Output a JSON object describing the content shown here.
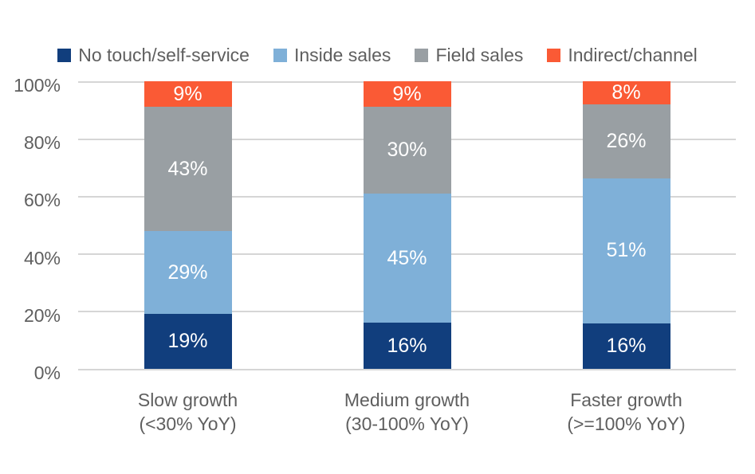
{
  "chart_data": {
    "type": "bar",
    "variant": "stacked-100-percent",
    "title": "",
    "xlabel": "",
    "ylabel": "",
    "categories": [
      {
        "line1": "Slow growth",
        "line2": "(<30% YoY)"
      },
      {
        "line1": "Medium growth",
        "line2": "(30-100% YoY)"
      },
      {
        "line1": "Faster growth",
        "line2": "(>=100% YoY)"
      }
    ],
    "series": [
      {
        "name": "No touch/self-service",
        "color": "#113e7d",
        "values": [
          19,
          16,
          16
        ],
        "labels": [
          "19%",
          "16%",
          "16%"
        ]
      },
      {
        "name": "Inside sales",
        "color": "#7fb0d8",
        "values": [
          29,
          45,
          51
        ],
        "labels": [
          "29%",
          "45%",
          "51%"
        ]
      },
      {
        "name": "Field sales",
        "color": "#999fa3",
        "values": [
          43,
          30,
          26
        ],
        "labels": [
          "43%",
          "30%",
          "26%"
        ]
      },
      {
        "name": "Indirect/channel",
        "color": "#fa5a35",
        "values": [
          9,
          9,
          8
        ],
        "labels": [
          "9%",
          "9%",
          "8%"
        ]
      }
    ],
    "y_ticks": [
      "0%",
      "20%",
      "40%",
      "60%",
      "80%",
      "100%"
    ],
    "ylim": [
      0,
      100
    ],
    "grid": true,
    "legend_position": "top",
    "colors": {
      "gridline": "#d6d6d6",
      "axis_text": "#5f5f5f",
      "data_label": "#ffffff",
      "background": "#ffffff"
    }
  }
}
